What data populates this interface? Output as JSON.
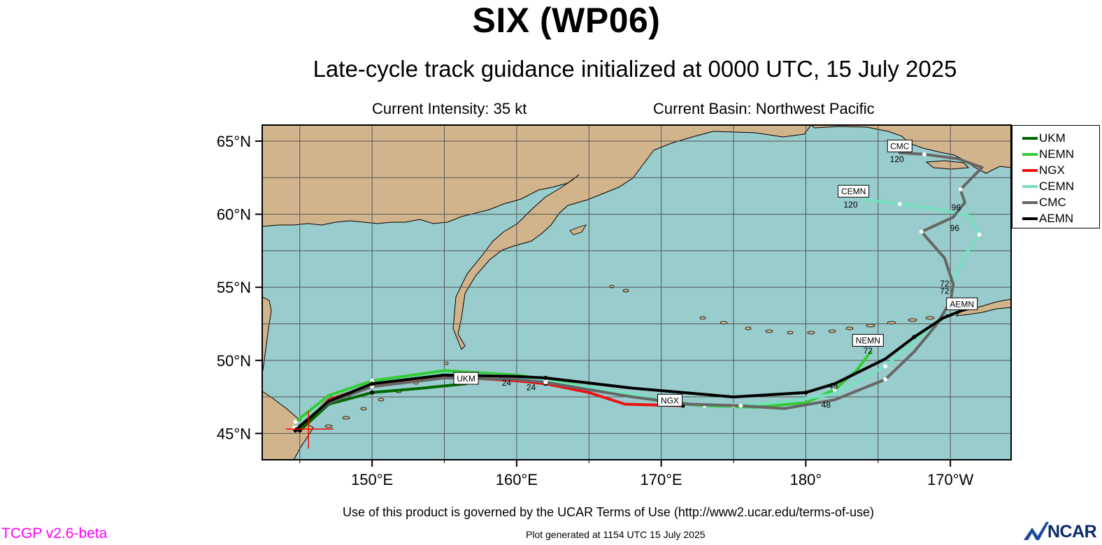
{
  "header": {
    "title": "SIX (WP06)",
    "subtitle": "Late-cycle track guidance initialized at 0000 UTC, 15 July 2025",
    "intensity": "Current Intensity: 35 kt",
    "basin": "Current Basin: Northwest Pacific"
  },
  "footer": {
    "terms": "Use of this product is governed by the UCAR Terms of Use (http://www2.ucar.edu/terms-of-use)",
    "plot_generated": "Plot generated at 1154 UTC   15 July 2025",
    "version": "TCGP v2.6-beta",
    "logo_text": "NCAR"
  },
  "map": {
    "lon_range": [
      142.4,
      194.2
    ],
    "lat_range": [
      43.2,
      66.1
    ],
    "lat_ticks": [
      {
        "lat": 65,
        "label": "65°N"
      },
      {
        "lat": 60,
        "label": "60°N"
      },
      {
        "lat": 55,
        "label": "55°N"
      },
      {
        "lat": 50,
        "label": "50°N"
      },
      {
        "lat": 45,
        "label": "45°N"
      }
    ],
    "lon_ticks": [
      {
        "lon": 150,
        "label": "150°E"
      },
      {
        "lon": 160,
        "label": "160°E"
      },
      {
        "lon": 170,
        "label": "170°E"
      },
      {
        "lon": 180,
        "label": "180°"
      },
      {
        "lon": 190,
        "label": "170°W"
      }
    ],
    "ocean_color": "#99cccc",
    "land_color": "#d2b48c",
    "storm_position": {
      "lon": 145.6,
      "lat": 45.3
    },
    "storm_marker_color": "#ff0000"
  },
  "chart_data": {
    "type": "map-track",
    "series": [
      {
        "name": "UKM",
        "color": "#006600",
        "points": [
          [
            145.0,
            45.2
          ],
          [
            147.0,
            47.0
          ],
          [
            150.0,
            47.8
          ],
          [
            153.5,
            48.1
          ],
          [
            156.5,
            48.4
          ]
        ],
        "label_box": {
          "text": "UKM",
          "lon": 156.5,
          "lat": 48.7
        },
        "tau_labels": []
      },
      {
        "name": "NEMN",
        "color": "#33cc33",
        "points": [
          [
            144.7,
            45.8
          ],
          [
            147.0,
            47.6
          ],
          [
            150.0,
            48.6
          ],
          [
            155.0,
            49.3
          ],
          [
            160.0,
            49.0
          ],
          [
            162.0,
            48.7
          ],
          [
            168.0,
            47.6
          ],
          [
            170.5,
            47.1
          ],
          [
            173.0,
            46.9
          ],
          [
            176.5,
            46.8
          ],
          [
            180.0,
            47.1
          ],
          [
            182.0,
            48.0
          ],
          [
            183.5,
            49.3
          ],
          [
            184.5,
            50.6
          ]
        ],
        "label_box": {
          "text": "NEMN",
          "lon": 184.3,
          "lat": 51.3
        },
        "tau_labels": [
          {
            "text": "72",
            "lon": 184.3,
            "lat": 50.7
          }
        ]
      },
      {
        "name": "NGX",
        "color": "#ee1111",
        "points": [
          [
            144.7,
            45.2
          ],
          [
            147.0,
            47.3
          ],
          [
            150.0,
            48.3
          ],
          [
            155.0,
            48.9
          ],
          [
            160.0,
            48.6
          ],
          [
            162.0,
            48.4
          ],
          [
            165.0,
            47.8
          ],
          [
            167.5,
            47.0
          ],
          [
            171.5,
            46.9
          ]
        ],
        "label_box": {
          "text": "NGX",
          "lon": 170.6,
          "lat": 47.2
        },
        "tau_labels": [
          {
            "text": "24",
            "lon": 161.0,
            "lat": 48.2
          }
        ]
      },
      {
        "name": "CEMN",
        "color": "#77e0c0",
        "points": [
          [
            144.6,
            45.4
          ],
          [
            147.0,
            47.2
          ],
          [
            150.0,
            48.4
          ],
          [
            155.0,
            49.1
          ],
          [
            160.0,
            48.9
          ],
          [
            162.0,
            48.6
          ],
          [
            168.0,
            47.7
          ],
          [
            172.0,
            47.0
          ],
          [
            175.0,
            46.9
          ],
          [
            178.0,
            47.1
          ],
          [
            182.0,
            47.7
          ],
          [
            185.5,
            49.6
          ],
          [
            187.5,
            51.3
          ],
          [
            189.5,
            53.0
          ],
          [
            190.0,
            54.2
          ],
          [
            190.3,
            55.6
          ],
          [
            191.2,
            57.5
          ],
          [
            192.0,
            58.6
          ],
          [
            191.3,
            59.9
          ],
          [
            188.7,
            60.4
          ],
          [
            186.5,
            60.7
          ],
          [
            184.0,
            61.0
          ]
        ],
        "label_box": {
          "text": "CEMN",
          "lon": 183.3,
          "lat": 61.5
        },
        "tau_labels": [
          {
            "text": "120",
            "lon": 183.1,
            "lat": 60.7
          }
        ]
      },
      {
        "name": "CMC",
        "color": "#666666",
        "points": [
          [
            144.8,
            45.4
          ],
          [
            147.0,
            47.1
          ],
          [
            150.0,
            48.2
          ],
          [
            155.0,
            48.8
          ],
          [
            160.0,
            48.7
          ],
          [
            162.0,
            48.5
          ],
          [
            168.0,
            47.5
          ],
          [
            172.0,
            47.0
          ],
          [
            175.5,
            46.9
          ],
          [
            178.5,
            46.7
          ],
          [
            182.0,
            47.3
          ],
          [
            185.5,
            48.7
          ],
          [
            187.5,
            50.6
          ],
          [
            189.0,
            52.4
          ],
          [
            190.0,
            54.0
          ],
          [
            190.2,
            55.2
          ],
          [
            189.6,
            57.0
          ],
          [
            188.0,
            58.8
          ],
          [
            190.2,
            59.8
          ],
          [
            191.0,
            60.8
          ],
          [
            190.7,
            61.7
          ],
          [
            192.2,
            63.2
          ],
          [
            190.5,
            63.8
          ],
          [
            188.2,
            64.1
          ],
          [
            186.5,
            64.2
          ]
        ],
        "label_box": {
          "text": "CMC",
          "lon": 186.5,
          "lat": 64.6
        },
        "tau_labels": [
          {
            "text": "48",
            "lon": 181.4,
            "lat": 47.0
          },
          {
            "text": "72",
            "lon": 189.6,
            "lat": 55.3
          },
          {
            "text": "96",
            "lon": 190.4,
            "lat": 60.5
          },
          {
            "text": "120",
            "lon": 186.3,
            "lat": 63.8
          }
        ]
      },
      {
        "name": "AEMN",
        "color": "#000000",
        "points": [
          [
            144.8,
            45.3
          ],
          [
            147.0,
            47.2
          ],
          [
            150.0,
            48.4
          ],
          [
            155.0,
            49.0
          ],
          [
            160.0,
            48.9
          ],
          [
            162.0,
            48.8
          ],
          [
            168.0,
            48.1
          ],
          [
            175.0,
            47.5
          ],
          [
            180.0,
            47.8
          ],
          [
            182.0,
            48.4
          ],
          [
            185.5,
            50.1
          ],
          [
            187.5,
            51.6
          ],
          [
            189.5,
            52.9
          ],
          [
            191.0,
            53.5
          ]
        ],
        "label_box": {
          "text": "AEMN",
          "lon": 190.8,
          "lat": 53.8
        },
        "tau_labels": [
          {
            "text": "24",
            "lon": 159.3,
            "lat": 48.5
          },
          {
            "text": "48",
            "lon": 181.9,
            "lat": 48.3
          },
          {
            "text": "72",
            "lon": 189.6,
            "lat": 54.8
          },
          {
            "text": "96",
            "lon": 190.3,
            "lat": 59.1
          }
        ]
      }
    ]
  },
  "legend": [
    {
      "name": "UKM",
      "color": "#006600"
    },
    {
      "name": "NEMN",
      "color": "#33cc33"
    },
    {
      "name": "NGX",
      "color": "#ee1111"
    },
    {
      "name": "CEMN",
      "color": "#77e0c0"
    },
    {
      "name": "CMC",
      "color": "#666666"
    },
    {
      "name": "AEMN",
      "color": "#000000"
    }
  ]
}
